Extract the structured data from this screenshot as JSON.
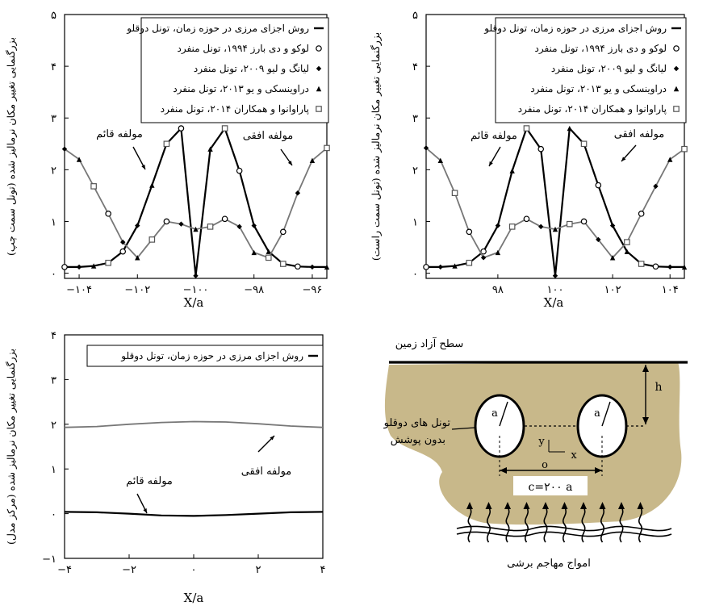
{
  "chart_data": [
    {
      "type": "line",
      "ylabel": "بزرگنمایی تغییر مکان نرمالیز شده (تونل سمت چپ)",
      "xlabel": "X/a",
      "xlim": [
        -104.5,
        -95.5
      ],
      "ylim": [
        -0.1,
        5
      ],
      "x_ticks": [
        -104,
        -102,
        -100,
        -98,
        -96
      ],
      "x_tick_labels": [
        "−۱۰۴",
        "−۱۰۲",
        "−۱۰۰",
        "−۹۸",
        "−۹۶"
      ],
      "y_ticks": [
        0,
        1,
        2,
        3,
        4,
        5
      ],
      "y_tick_labels": [
        "۰",
        "۱",
        "۲",
        "۳",
        "۴",
        "۵"
      ],
      "legend_position": "top-right",
      "grid": false,
      "series": [
        {
          "name": "روش اجزای مرزی در حوزه زمان، تونل دوقلو",
          "marker": "line",
          "color": "#000000",
          "x": [
            -104.5,
            -104,
            -103.5,
            -103,
            -102.5,
            -102,
            -101.5,
            -101,
            -100.5,
            -100,
            -99.5,
            -99,
            -98.5,
            -98,
            -97.5,
            -97,
            -96.5,
            -96,
            -95.5
          ],
          "y": [
            0.12,
            0.12,
            0.14,
            0.2,
            0.42,
            0.92,
            1.7,
            2.5,
            2.8,
            -0.05,
            2.4,
            2.8,
            1.98,
            0.92,
            0.42,
            0.18,
            0.13,
            0.12,
            0.12
          ]
        },
        {
          "name": "",
          "marker": "line",
          "color": "#777777",
          "x": [
            -104.5,
            -104,
            -103.5,
            -103,
            -102.5,
            -102,
            -101.5,
            -101,
            -100.5,
            -100,
            -99.5,
            -99,
            -98.5,
            -98,
            -97.5,
            -97,
            -96.5,
            -96,
            -95.5
          ],
          "y": [
            2.4,
            2.2,
            1.68,
            1.15,
            0.6,
            0.3,
            0.65,
            1.0,
            0.95,
            0.85,
            0.9,
            1.05,
            0.9,
            0.4,
            0.3,
            0.8,
            1.55,
            2.18,
            2.42
          ]
        }
      ],
      "legend_entries": [
        {
          "label": "روش اجزای مرزی در حوزه زمان، تونل دوقلو",
          "marker": "line"
        },
        {
          "label": "لوکو و دی بارز ۱۹۹۴، تونل منفرد",
          "marker": "circle"
        },
        {
          "label": "لیانگ و لیو ۲۰۰۹، تونل منفرد",
          "marker": "diamond"
        },
        {
          "label": "دراوینسکی و یو ۲۰۱۳، تونل منفرد",
          "marker": "triangle"
        },
        {
          "label": "پاراوانوا و همکاران ۲۰۱۴، تونل منفرد",
          "marker": "square"
        }
      ],
      "annotations": [
        {
          "text": "مولفه قائم"
        },
        {
          "text": "مولفه افقی"
        }
      ]
    },
    {
      "type": "line",
      "ylabel": "بزرگنمایی تغییر مکان نرمالیز شده (تونل سمت راست)",
      "xlabel": "X/a",
      "xlim": [
        95.5,
        104.5
      ],
      "ylim": [
        -0.1,
        5
      ],
      "x_ticks": [
        98,
        100,
        102,
        104
      ],
      "x_tick_labels": [
        "۹۸",
        "۱۰۰",
        "۱۰۲",
        "۱۰۴"
      ],
      "y_ticks": [
        0,
        1,
        2,
        3,
        4,
        5
      ],
      "y_tick_labels": [
        "۰",
        "۱",
        "۲",
        "۳",
        "۴",
        "۵"
      ],
      "legend_position": "top-right",
      "grid": false,
      "series": [
        {
          "name": "روش اجزای مرزی در حوزه زمان، تونل دوقلو",
          "marker": "line",
          "color": "#000000",
          "x": [
            95.5,
            96,
            96.5,
            97,
            97.5,
            98,
            98.5,
            99,
            99.5,
            100,
            100.5,
            101,
            101.5,
            102,
            102.5,
            103,
            103.5,
            104,
            104.5
          ],
          "y": [
            0.12,
            0.12,
            0.14,
            0.2,
            0.42,
            0.92,
            1.98,
            2.8,
            2.4,
            -0.05,
            2.8,
            2.5,
            1.7,
            0.92,
            0.42,
            0.18,
            0.13,
            0.12,
            0.12
          ]
        },
        {
          "name": "",
          "marker": "line",
          "color": "#777777",
          "x": [
            95.5,
            96,
            96.5,
            97,
            97.5,
            98,
            98.5,
            99,
            99.5,
            100,
            100.5,
            101,
            101.5,
            102,
            102.5,
            103,
            103.5,
            104,
            104.5
          ],
          "y": [
            2.42,
            2.18,
            1.55,
            0.8,
            0.3,
            0.4,
            0.9,
            1.05,
            0.9,
            0.85,
            0.95,
            1.0,
            0.65,
            0.3,
            0.6,
            1.15,
            1.68,
            2.2,
            2.4
          ]
        }
      ],
      "legend_entries": [
        {
          "label": "روش اجزای مرزی در حوزه زمان، تونل دوقلو",
          "marker": "line"
        },
        {
          "label": "لوکو و دی بارز ۱۹۹۴، تونل منفرد",
          "marker": "circle"
        },
        {
          "label": "لیانگ و لیو ۲۰۰۹، تونل منفرد",
          "marker": "diamond"
        },
        {
          "label": "دراوینسکی و یو ۲۰۱۳، تونل منفرد",
          "marker": "triangle"
        },
        {
          "label": "پاراوانوا و همکاران ۲۰۱۴، تونل منفرد",
          "marker": "square"
        }
      ],
      "annotations": [
        {
          "text": "مولفه قائم"
        },
        {
          "text": "مولفه افقی"
        }
      ]
    },
    {
      "type": "line",
      "ylabel": "بزرگنمایی تغییر مکان نرمالیز شده (مرکز مدل)",
      "xlabel": "X/a",
      "xlim": [
        -4,
        4
      ],
      "ylim": [
        -1,
        4
      ],
      "x_ticks": [
        -4,
        -2,
        0,
        2,
        4
      ],
      "x_tick_labels": [
        "−۴",
        "−۲",
        "۰",
        "۲",
        "۴"
      ],
      "y_ticks": [
        -1,
        0,
        1,
        2,
        3,
        4
      ],
      "y_tick_labels": [
        "−۱",
        "۰",
        "۱",
        "۲",
        "۳",
        "۴"
      ],
      "legend_position": "top-right",
      "grid": false,
      "series": [
        {
          "name": "",
          "marker": "line",
          "color": "#777777",
          "x": [
            -4,
            -3,
            -2,
            -1,
            0,
            1,
            2,
            3,
            4
          ],
          "y": [
            1.93,
            1.95,
            2.0,
            2.04,
            2.06,
            2.05,
            2.01,
            1.96,
            1.93
          ]
        },
        {
          "name": "روش اجزای مرزی در حوزه زمان، تونل دوقلو",
          "marker": "line",
          "color": "#000000",
          "x": [
            -4,
            -3,
            -2,
            -1,
            0,
            1,
            2,
            3,
            4
          ],
          "y": [
            0.04,
            0.03,
            0.0,
            -0.04,
            -0.05,
            -0.03,
            0.0,
            0.03,
            0.04
          ]
        }
      ],
      "legend_entries": [
        {
          "label": "روش اجزای مرزی در حوزه زمان، تونل دوقلو",
          "marker": "line"
        }
      ],
      "annotations": [
        {
          "text": "مولفه قائم"
        },
        {
          "text": "مولفه افقی"
        }
      ]
    }
  ],
  "diagram": {
    "surface_label": "سطح آزاد زمین",
    "depth_label": "h",
    "radius_label": "a",
    "tunnels_label_line1": "تونل های دوقلو",
    "tunnels_label_line2": "بدون پوشش",
    "axis_y_label": "y",
    "axis_x_label": "x",
    "origin_label": "o",
    "spacing_label": "c=۲۰۰ a",
    "waves_label": "امواج مهاجم برشی",
    "ground_color": "#c8b88a"
  }
}
